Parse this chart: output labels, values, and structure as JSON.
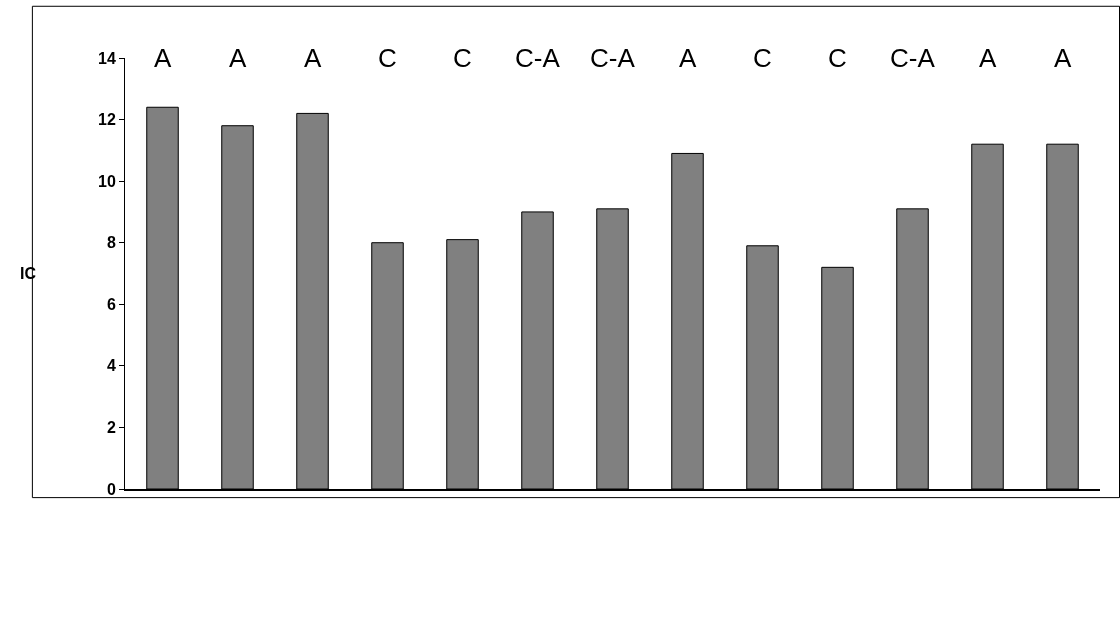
{
  "chart_data": {
    "type": "bar",
    "ylabel": "IC",
    "categories": [
      null,
      null,
      null,
      null,
      null,
      null,
      null,
      null,
      null,
      null,
      null,
      null,
      null
    ],
    "values": [
      12.4,
      11.8,
      12.2,
      8.0,
      8.1,
      9.0,
      9.1,
      10.9,
      7.9,
      7.2,
      9.1,
      11.2,
      11.2
    ],
    "color": "#808080",
    "ylim": [
      0,
      14
    ],
    "yticks": [
      0,
      2,
      4,
      6,
      8,
      10,
      12,
      14
    ],
    "grid": false,
    "annotations": [
      "A",
      "A",
      "A",
      "C",
      "C",
      "C-A",
      "C-A",
      "A",
      "C",
      "C",
      "C-A",
      "A",
      "A"
    ]
  }
}
